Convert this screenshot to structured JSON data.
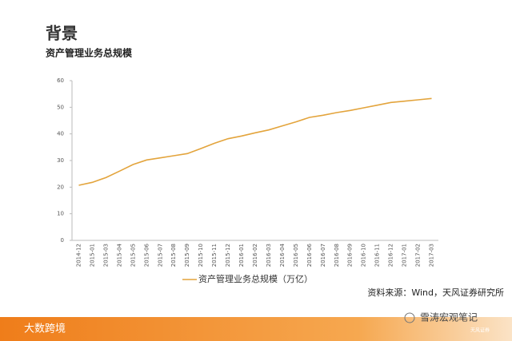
{
  "header": {
    "title": "背景"
  },
  "chart_data": {
    "type": "line",
    "title": "资产管理业务总规模",
    "categories": [
      "2014-12",
      "2015-01",
      "2015-03",
      "2015-04",
      "2015-05",
      "2015-06",
      "2015-07",
      "2015-08",
      "2015-09",
      "2015-10",
      "2015-11",
      "2015-12",
      "2016-01",
      "2016-02",
      "2016-03",
      "2016-04",
      "2016-05",
      "2016-06",
      "2016-07",
      "2016-08",
      "2016-09",
      "2016-10",
      "2016-11",
      "2016-12",
      "2017-01",
      "2017-02",
      "2017-03"
    ],
    "series": [
      {
        "name": "资产管理业务总规模（万亿）",
        "color": "#e3a43c",
        "values": [
          20.7,
          21.8,
          23.6,
          26,
          28.5,
          30.2,
          31,
          31.8,
          32.6,
          34.5,
          36.5,
          38.2,
          39.2,
          40.4,
          41.5,
          43,
          44.5,
          46.2,
          47,
          48,
          48.8,
          49.8,
          50.8,
          51.8,
          52.3,
          52.8,
          53.3
        ]
      }
    ],
    "ylim": [
      0,
      60
    ],
    "yticks": [
      0,
      10,
      20,
      30,
      40,
      50,
      60
    ],
    "legend": "bottom",
    "source": "资料来源：Wind，天风证券研究所"
  },
  "footer": {
    "brand": "大数跨境",
    "watermark": "雪涛宏观笔记",
    "logo": "天风证券"
  }
}
